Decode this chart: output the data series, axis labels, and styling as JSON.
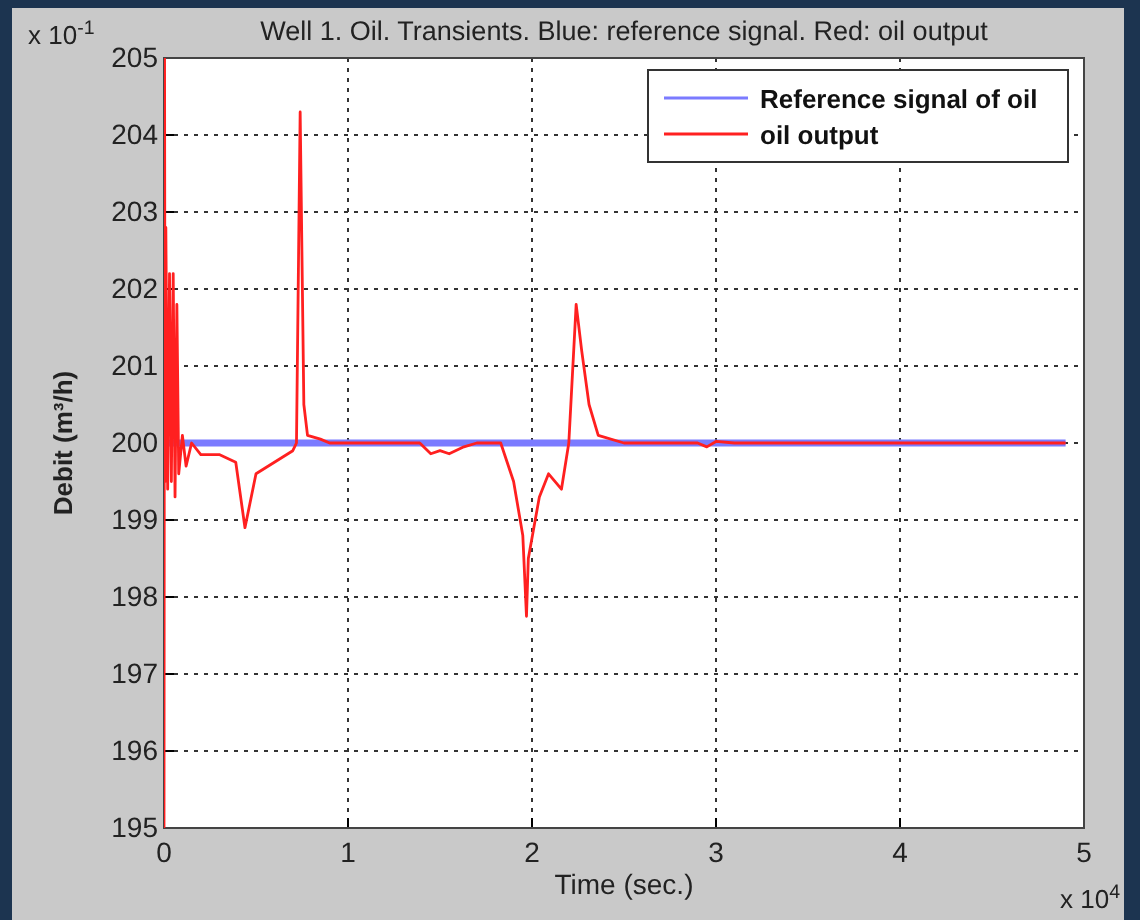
{
  "chart_data": {
    "type": "line",
    "title": "Well 1.   Oil. Transients. Blue: reference signal. Red: oil output",
    "xlabel": "Time (sec.)",
    "ylabel": "Debit (m³/h)",
    "annotations": [
      "x 10$^{-1}$",
      "x 10$^{4}$"
    ],
    "xlim": [
      0,
      5
    ],
    "xticks": [
      0,
      1,
      2,
      3,
      4,
      5
    ],
    "ylim": [
      195,
      205
    ],
    "yticks": [
      195,
      196,
      197,
      198,
      199,
      200,
      201,
      202,
      203,
      204,
      205
    ],
    "grid": true,
    "legend": "top right",
    "line_style": "solid",
    "series": [
      {
        "name": "Reference signal of oil",
        "color": "#7b7bff",
        "x": [
          0,
          4.9
        ],
        "values": [
          200,
          200
        ]
      },
      {
        "name": "oil output",
        "color": "#ff2020",
        "x": [
          0,
          0.003,
          0.006,
          0.01,
          0.02,
          0.03,
          0.04,
          0.05,
          0.06,
          0.07,
          0.08,
          0.1,
          0.12,
          0.15,
          0.2,
          0.3,
          0.39,
          0.44,
          0.5,
          0.6,
          0.7,
          0.72,
          0.74,
          0.76,
          0.78,
          0.85,
          0.9,
          1.0,
          1.39,
          1.45,
          1.5,
          1.55,
          1.63,
          1.7,
          1.83,
          1.9,
          1.95,
          1.97,
          1.98,
          2.04,
          2.09,
          2.16,
          2.2,
          2.24,
          2.27,
          2.31,
          2.36,
          2.5,
          2.9,
          2.95,
          3.0,
          3.1,
          4.9
        ],
        "values": [
          195,
          205,
          199.5,
          202.8,
          199.4,
          202.2,
          199.5,
          202.2,
          199.3,
          201.8,
          199.6,
          200.1,
          199.7,
          200,
          199.85,
          199.85,
          199.75,
          198.9,
          199.6,
          199.75,
          199.9,
          200,
          204.3,
          200.5,
          200.1,
          200.05,
          200,
          200,
          200,
          199.86,
          199.9,
          199.86,
          199.95,
          200,
          200,
          199.5,
          198.8,
          197.75,
          198.5,
          199.3,
          199.6,
          199.4,
          200,
          201.8,
          201.2,
          200.5,
          200.1,
          200,
          200,
          199.95,
          200.02,
          200,
          200
        ]
      }
    ]
  }
}
